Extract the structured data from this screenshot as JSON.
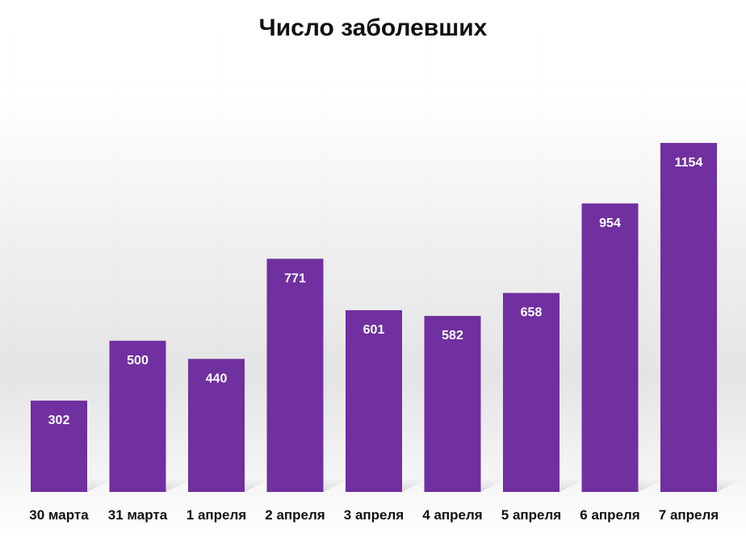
{
  "chart_data": {
    "type": "bar",
    "title": "Число заболевших",
    "categories": [
      "30 марта",
      "31 марта",
      "1 апреля",
      "2 апреля",
      "3 апреля",
      "4 апреля",
      "5 апреля",
      "6 апреля",
      "7 апреля"
    ],
    "values": [
      302,
      500,
      440,
      771,
      601,
      582,
      658,
      954,
      1154
    ],
    "data_labels": [
      "302",
      "500",
      "440",
      "771",
      "601",
      "582",
      "658",
      "954",
      "1154"
    ],
    "ylim": [
      0,
      1300
    ],
    "grid": false,
    "legend": "none",
    "bar_color": "#7030A0"
  }
}
